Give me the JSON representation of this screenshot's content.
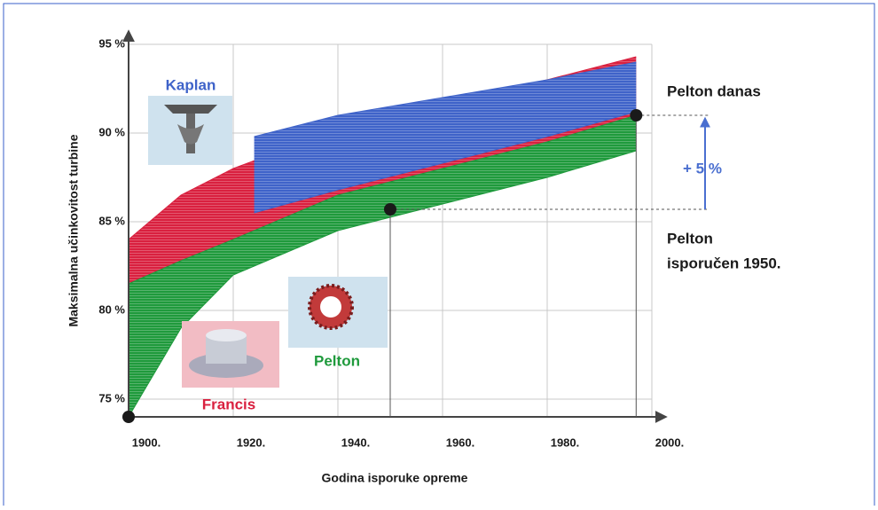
{
  "chart_data": {
    "type": "range_area",
    "ylabel": "Maksimalna učinkovitost turbine",
    "xlabel": "Godina isporuke opreme",
    "xlim": [
      1900,
      2000
    ],
    "xticks": [
      {
        "value": 1900,
        "label": "1900."
      },
      {
        "value": 1920,
        "label": "1920."
      },
      {
        "value": 1940,
        "label": "1940."
      },
      {
        "value": 1960,
        "label": "1960."
      },
      {
        "value": 1980,
        "label": "1980."
      },
      {
        "value": 2000,
        "label": "2000."
      }
    ],
    "ylim": [
      74,
      95
    ],
    "yticks": [
      {
        "value": 75,
        "label": "75 %"
      },
      {
        "value": 80,
        "label": "80 %"
      },
      {
        "value": 85,
        "label": "85 %"
      },
      {
        "value": 90,
        "label": "90 %"
      },
      {
        "value": 95,
        "label": "95 %"
      }
    ],
    "grid": true,
    "series": [
      {
        "name": "Francis",
        "color": "#d9203f",
        "x": [
          1900,
          1910,
          1920,
          1940,
          1960,
          1980,
          1997
        ],
        "low": [
          81.5,
          82.8,
          84,
          86.5,
          88,
          89.5,
          91
        ],
        "high": [
          84,
          86.5,
          88,
          90.2,
          91.7,
          93,
          94.3
        ]
      },
      {
        "name": "Pelton",
        "color": "#1f9a3c",
        "x": [
          1900,
          1910,
          1920,
          1940,
          1960,
          1980,
          1997
        ],
        "low": [
          74,
          79,
          82,
          84.5,
          86,
          87.5,
          89
        ],
        "high": [
          81.5,
          82.8,
          84,
          86.5,
          88,
          89.5,
          91
        ]
      },
      {
        "name": "Kaplan",
        "color": "#3f63c9",
        "x": [
          1924,
          1940,
          1960,
          1980,
          1997
        ],
        "low": [
          85.5,
          86.8,
          88.3,
          89.8,
          91.2
        ],
        "high": [
          89.8,
          91,
          92,
          93,
          94
        ]
      }
    ],
    "points": {
      "x": [
        1900,
        1950,
        1997
      ],
      "y": [
        74,
        85.7,
        91
      ],
      "color": "#1a1a1a"
    },
    "annotations": [
      "Pelton danas",
      "Pelton",
      "isporučen 1950.",
      "+ 5 %"
    ]
  }
}
